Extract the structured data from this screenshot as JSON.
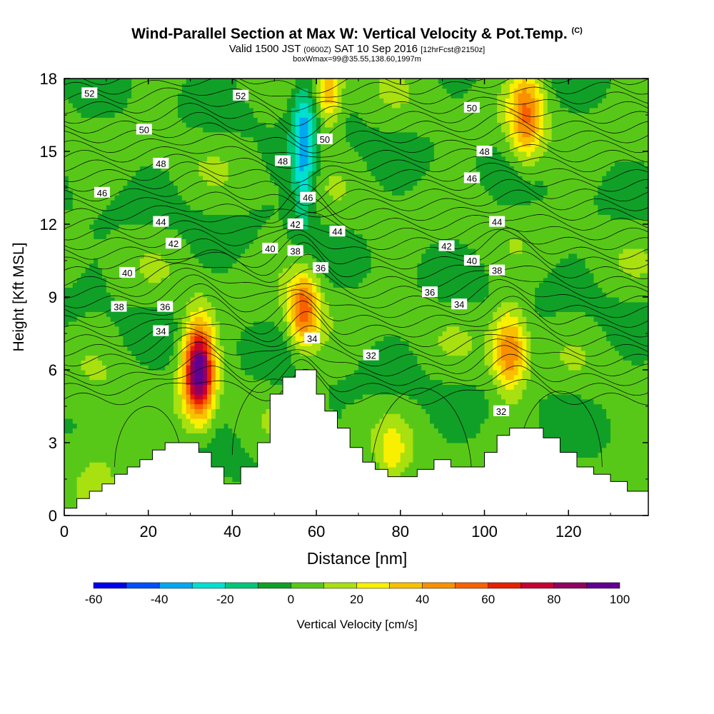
{
  "title": {
    "main": "Wind-Parallel Section at Max W: Vertical Velocity & Pot.Temp.",
    "copyright": "(C)",
    "valid_prefix": "Valid 1500 JST",
    "valid_utc": "(0600Z)",
    "valid_date": "SAT 10 Sep 2016",
    "forecast": "[12hrFcst@2150z]",
    "box_info": "boxWmax=99@35.55,138.60,1997m"
  },
  "chart_data": {
    "type": "heatmap",
    "xlabel": "Distance [nm]",
    "ylabel": "Height [Kft MSL]",
    "xlim": [
      0,
      139
    ],
    "ylim": [
      0,
      18
    ],
    "x_ticks": [
      0,
      20,
      40,
      60,
      80,
      100,
      120
    ],
    "y_ticks": [
      0,
      3,
      6,
      9,
      12,
      15,
      18
    ],
    "colorbar": {
      "label": "Vertical Velocity [cm/s]",
      "range": [
        -60,
        100
      ],
      "step": 10,
      "tick_labels": [
        -60,
        -40,
        -20,
        0,
        20,
        40,
        60,
        80,
        100
      ],
      "colors": [
        "#0000ee",
        "#0050ff",
        "#00a8f0",
        "#00e0d0",
        "#00c878",
        "#10a028",
        "#58c818",
        "#a8e010",
        "#f8f000",
        "#f8c000",
        "#f89000",
        "#f86000",
        "#e82000",
        "#c80030",
        "#900060",
        "#600090"
      ]
    },
    "velocity_features": [
      {
        "x": 32,
        "z": 6.0,
        "w": 100,
        "note": "updraft core"
      },
      {
        "x": 57,
        "z": 8.5,
        "w": 55
      },
      {
        "x": 106,
        "z": 6.8,
        "w": 50
      },
      {
        "x": 63,
        "z": 17.5,
        "w": 40
      },
      {
        "x": 110,
        "z": 16.5,
        "w": 45
      },
      {
        "x": 57,
        "z": 15.0,
        "w": -35,
        "note": "downdraft"
      },
      {
        "x": 78,
        "z": 2.5,
        "w": 20
      },
      {
        "x": 8,
        "z": 3.0,
        "w": 15
      }
    ],
    "terrain_kft": [
      [
        0,
        0.3
      ],
      [
        3,
        0.7
      ],
      [
        6,
        1.0
      ],
      [
        9,
        1.3
      ],
      [
        12,
        1.7
      ],
      [
        15,
        2.0
      ],
      [
        18,
        2.3
      ],
      [
        21,
        2.7
      ],
      [
        24,
        3.0
      ],
      [
        27,
        3.0
      ],
      [
        30,
        3.0
      ],
      [
        32,
        2.6
      ],
      [
        35,
        2.0
      ],
      [
        38,
        1.3
      ],
      [
        40,
        1.3
      ],
      [
        42,
        2.0
      ],
      [
        46,
        3.0
      ],
      [
        49,
        5.0
      ],
      [
        52,
        5.7
      ],
      [
        55,
        6.0
      ],
      [
        58,
        6.0
      ],
      [
        60,
        5.0
      ],
      [
        62,
        4.3
      ],
      [
        65,
        3.6
      ],
      [
        68,
        2.8
      ],
      [
        71,
        2.2
      ],
      [
        74,
        1.9
      ],
      [
        77,
        1.6
      ],
      [
        80,
        1.6
      ],
      [
        84,
        1.9
      ],
      [
        88,
        2.3
      ],
      [
        92,
        2.0
      ],
      [
        96,
        2.0
      ],
      [
        100,
        2.6
      ],
      [
        103,
        3.3
      ],
      [
        106,
        3.6
      ],
      [
        110,
        3.6
      ],
      [
        114,
        3.2
      ],
      [
        118,
        2.6
      ],
      [
        122,
        2.0
      ],
      [
        126,
        1.7
      ],
      [
        130,
        1.4
      ],
      [
        134,
        1.0
      ],
      [
        139,
        1.0
      ]
    ],
    "theta_contour_labels": [
      {
        "text": "52",
        "x": 6,
        "z": 17.4
      },
      {
        "text": "52",
        "x": 42,
        "z": 17.3
      },
      {
        "text": "50",
        "x": 19,
        "z": 15.9
      },
      {
        "text": "48",
        "x": 23,
        "z": 14.5
      },
      {
        "text": "46",
        "x": 9,
        "z": 13.3
      },
      {
        "text": "44",
        "x": 23,
        "z": 12.1
      },
      {
        "text": "42",
        "x": 26,
        "z": 11.2
      },
      {
        "text": "40",
        "x": 15,
        "z": 10.0
      },
      {
        "text": "38",
        "x": 13,
        "z": 8.6
      },
      {
        "text": "36",
        "x": 24,
        "z": 8.6
      },
      {
        "text": "34",
        "x": 23,
        "z": 7.6
      },
      {
        "text": "48",
        "x": 52,
        "z": 14.6
      },
      {
        "text": "50",
        "x": 62,
        "z": 15.5
      },
      {
        "text": "46",
        "x": 58,
        "z": 13.1
      },
      {
        "text": "42",
        "x": 55,
        "z": 12.0
      },
      {
        "text": "40",
        "x": 49,
        "z": 11.0
      },
      {
        "text": "38",
        "x": 55,
        "z": 10.9
      },
      {
        "text": "44",
        "x": 65,
        "z": 11.7
      },
      {
        "text": "36",
        "x": 61,
        "z": 10.2
      },
      {
        "text": "34",
        "x": 59,
        "z": 7.3
      },
      {
        "text": "32",
        "x": 73,
        "z": 6.6
      },
      {
        "text": "50",
        "x": 97,
        "z": 16.8
      },
      {
        "text": "48",
        "x": 100,
        "z": 15.0
      },
      {
        "text": "46",
        "x": 97,
        "z": 13.9
      },
      {
        "text": "44",
        "x": 103,
        "z": 12.1
      },
      {
        "text": "42",
        "x": 91,
        "z": 11.1
      },
      {
        "text": "40",
        "x": 97,
        "z": 10.5
      },
      {
        "text": "38",
        "x": 103,
        "z": 10.1
      },
      {
        "text": "36",
        "x": 87,
        "z": 9.2
      },
      {
        "text": "34",
        "x": 94,
        "z": 8.7
      },
      {
        "text": "32",
        "x": 104,
        "z": 4.3
      }
    ]
  }
}
